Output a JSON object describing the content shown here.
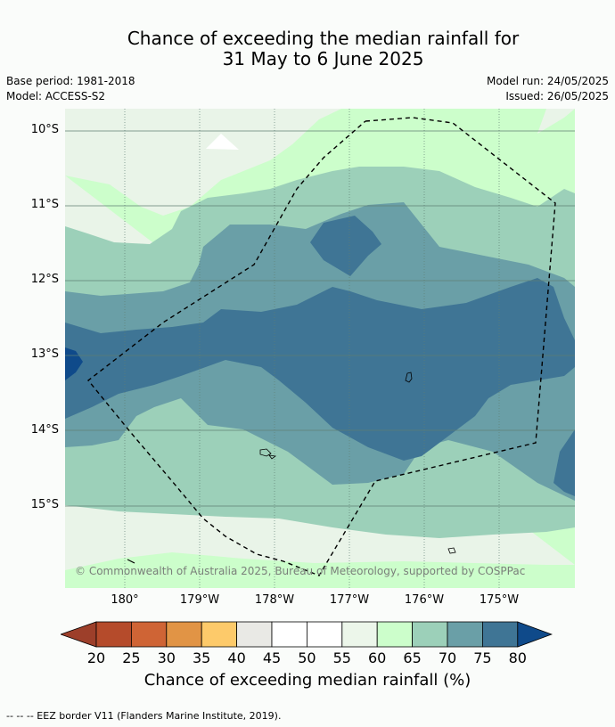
{
  "title": {
    "line1": "Chance of exceeding the median rainfall for",
    "line2": "31 May to 6 June 2025"
  },
  "meta": {
    "base_period": "Base period: 1981-2018",
    "model": "Model: ACCESS-S2",
    "model_run": "Model run: 24/05/2025",
    "issued": "Issued: 26/05/2025"
  },
  "map": {
    "lat_labels": [
      "10°S",
      "11°S",
      "12°S",
      "13°S",
      "14°S",
      "15°S"
    ],
    "lon_labels": [
      "180°",
      "179°W",
      "178°W",
      "177°W",
      "176°W",
      "175°W"
    ],
    "credit": "© Commonwealth of Australia 2025, Bureau of Meteorology, supported by COSPPac",
    "border_style": "dashed",
    "colors": {
      "40-45": "#e9ede7",
      "45-50": "#ffffff",
      "60-65": "#ccfecb",
      "65-70": "#9cd0b9",
      "70-75": "#6a9fa7",
      "75-80": "#3f7595",
      "80+": "#0f4a8a"
    }
  },
  "colorbar": {
    "ticks": [
      "20",
      "25",
      "30",
      "35",
      "40",
      "45",
      "50",
      "55",
      "60",
      "65",
      "70",
      "75",
      "80"
    ],
    "under_color": "#9d3f2a",
    "colors": [
      "#b54b2b",
      "#cf6435",
      "#e19445",
      "#fdca6a",
      "#e9e9e5",
      "#ffffff",
      "#ffffff",
      "#ecf6ea",
      "#ccfecb",
      "#9cd0b9",
      "#6a9fa7",
      "#3f7595"
    ],
    "over_color": "#0f4a8a",
    "label": "Chance of exceeding median rainfall (%)"
  },
  "footer": "--  --  -- EEZ border V11 (Flanders Marine Institute, 2019)."
}
